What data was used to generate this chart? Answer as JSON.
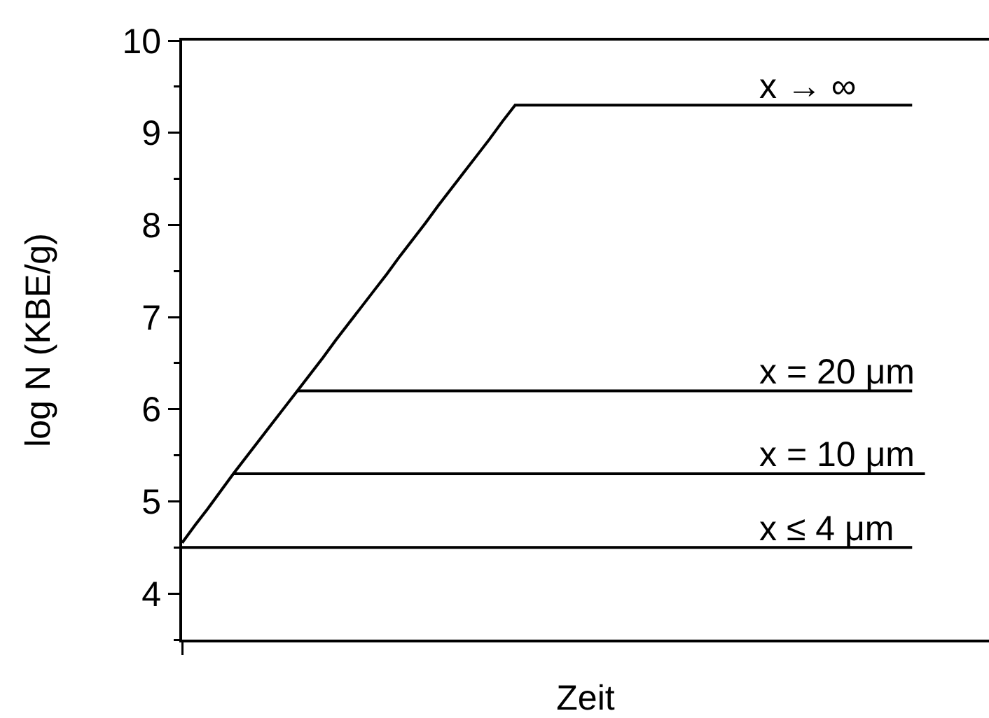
{
  "chart_data": {
    "type": "line",
    "xlabel": "Zeit",
    "ylabel": "log N (KBE/g)",
    "categories": [
      null,
      null,
      null,
      null,
      null,
      null,
      null,
      null,
      null,
      null,
      null,
      null,
      null,
      null,
      null,
      null,
      null,
      null,
      null,
      null,
      null,
      null,
      null,
      null,
      null,
      null,
      null,
      null,
      null,
      null,
      null,
      null,
      null,
      null,
      null,
      null,
      null,
      null,
      null,
      null,
      null,
      null,
      null,
      null,
      null,
      null,
      null,
      null,
      null,
      null,
      null,
      null,
      null,
      null,
      null,
      null,
      null,
      null,
      null,
      null,
      null,
      null,
      null,
      null
    ],
    "ylim": [
      3.5,
      10
    ],
    "yticks": [
      {
        "value": 3.5,
        "label": null
      },
      4,
      {
        "value": 4.5,
        "label": null
      },
      5,
      {
        "value": 5.5,
        "label": null
      },
      6,
      {
        "value": 6.5,
        "label": null
      },
      7,
      {
        "value": 7.5,
        "label": null
      },
      8,
      {
        "value": 8.5,
        "label": null
      },
      9,
      {
        "value": 9.5,
        "label": null
      },
      10
    ],
    "tick_labels": "y",
    "legend": false,
    "grid": false,
    "marker": "none",
    "line_style": "solid",
    "series": [
      {
        "name": "x → ∞",
        "color": "#000000",
        "values": [
          4.55,
          4.74,
          4.92,
          5.11,
          5.3,
          5.48,
          5.66,
          5.84,
          6.02,
          6.2,
          6.38,
          6.56,
          6.75,
          6.93,
          7.11,
          7.29,
          7.47,
          7.66,
          7.84,
          8.02,
          8.21,
          8.39,
          8.57,
          8.75,
          8.93,
          9.12,
          9.3,
          9.3,
          9.3,
          9.3,
          9.3,
          9.3,
          9.3,
          9.3,
          9.3,
          9.3,
          9.3,
          9.3,
          9.3,
          9.3,
          9.3,
          9.3,
          9.3,
          9.3,
          9.3,
          9.3,
          9.3,
          9.3,
          9.3,
          9.3,
          9.3,
          9.3,
          9.3,
          9.3,
          9.3,
          9.3,
          9.3,
          9.3,
          null,
          null,
          null,
          null,
          null,
          null
        ]
      },
      {
        "name": "x = 20 μm",
        "color": "#000000",
        "values": [
          null,
          null,
          null,
          null,
          null,
          null,
          null,
          null,
          null,
          6.2,
          6.2,
          6.2,
          6.2,
          6.2,
          6.2,
          6.2,
          6.2,
          6.2,
          6.2,
          6.2,
          6.2,
          6.2,
          6.2,
          6.2,
          6.2,
          6.2,
          6.2,
          6.2,
          6.2,
          6.2,
          6.2,
          6.2,
          6.2,
          6.2,
          6.2,
          6.2,
          6.2,
          6.2,
          6.2,
          6.2,
          6.2,
          6.2,
          6.2,
          6.2,
          6.2,
          6.2,
          6.2,
          6.2,
          6.2,
          6.2,
          6.2,
          6.2,
          6.2,
          6.2,
          6.2,
          6.2,
          6.2,
          6.2,
          null,
          null,
          null,
          null,
          null,
          null
        ]
      },
      {
        "name": "x = 10 μm",
        "color": "#000000",
        "values": [
          null,
          null,
          null,
          null,
          5.3,
          5.3,
          5.3,
          5.3,
          5.3,
          5.3,
          5.3,
          5.3,
          5.3,
          5.3,
          5.3,
          5.3,
          5.3,
          5.3,
          5.3,
          5.3,
          5.3,
          5.3,
          5.3,
          5.3,
          5.3,
          5.3,
          5.3,
          5.3,
          5.3,
          5.3,
          5.3,
          5.3,
          5.3,
          5.3,
          5.3,
          5.3,
          5.3,
          5.3,
          5.3,
          5.3,
          5.3,
          5.3,
          5.3,
          5.3,
          5.3,
          5.3,
          5.3,
          5.3,
          5.3,
          5.3,
          5.3,
          5.3,
          5.3,
          5.3,
          5.3,
          5.3,
          5.3,
          5.3,
          5.3,
          null,
          null,
          null,
          null,
          null
        ]
      },
      {
        "name": "x ≤ 4 μm",
        "color": "#000000",
        "values": [
          4.5,
          4.5,
          4.5,
          4.5,
          4.5,
          4.5,
          4.5,
          4.5,
          4.5,
          4.5,
          4.5,
          4.5,
          4.5,
          4.5,
          4.5,
          4.5,
          4.5,
          4.5,
          4.5,
          4.5,
          4.5,
          4.5,
          4.5,
          4.5,
          4.5,
          4.5,
          4.5,
          4.5,
          4.5,
          4.5,
          4.5,
          4.5,
          4.5,
          4.5,
          4.5,
          4.5,
          4.5,
          4.5,
          4.5,
          4.5,
          4.5,
          4.5,
          4.5,
          4.5,
          4.5,
          4.5,
          4.5,
          4.5,
          4.5,
          4.5,
          4.5,
          4.5,
          4.5,
          4.5,
          4.5,
          4.5,
          4.5,
          4.5,
          null,
          null,
          null,
          null,
          null,
          null
        ]
      }
    ]
  }
}
